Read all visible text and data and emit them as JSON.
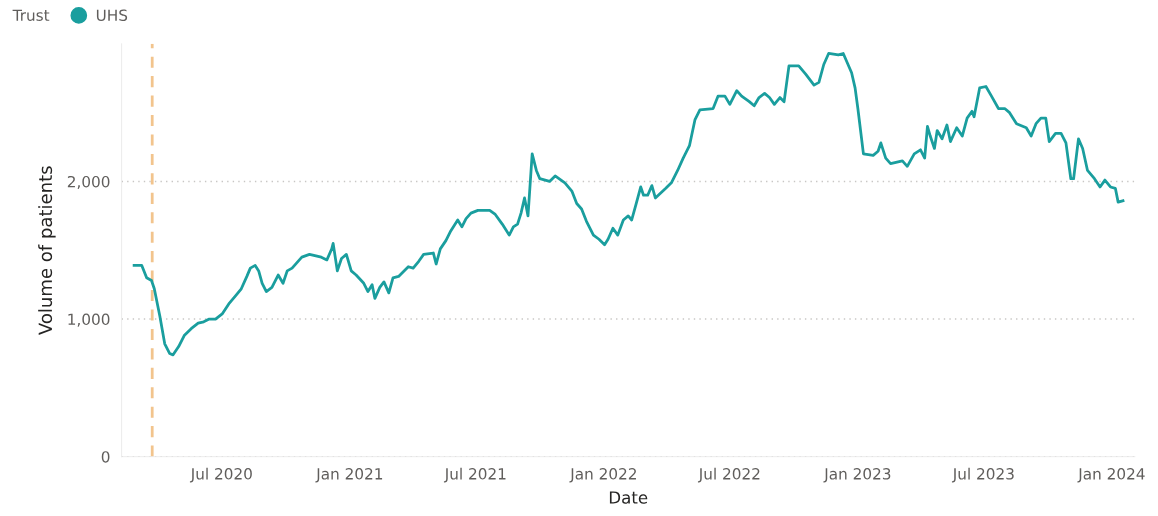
{
  "chart_data": {
    "type": "line",
    "xlabel": "Date",
    "ylabel": "Volume of patients",
    "legend_title": "Trust",
    "legend": "top left",
    "grid": "y",
    "marker": "none",
    "line_style": "solid",
    "xlim": [
      "2020-02-08",
      "2024-02-03"
    ],
    "ylim": [
      0,
      3000
    ],
    "yticks": [
      0,
      {
        "value": 1000,
        "label": "1,000"
      },
      {
        "value": 2000,
        "label": "2,000"
      }
    ],
    "xticks": [
      {
        "value": "2020-07-01",
        "label": "Jul 2020"
      },
      {
        "value": "2021-01-01",
        "label": "Jan 2021"
      },
      {
        "value": "2021-07-01",
        "label": "Jul 2021"
      },
      {
        "value": "2022-01-01",
        "label": "Jan 2022"
      },
      {
        "value": "2022-07-01",
        "label": "Jul 2022"
      },
      {
        "value": "2023-01-01",
        "label": "Jan 2023"
      },
      {
        "value": "2023-07-01",
        "label": "Jul 2023"
      },
      {
        "value": "2024-01-01",
        "label": "Jan 2024"
      }
    ],
    "ref_lines": [
      {
        "axis": "x",
        "value": "2020-03-23",
        "label": null,
        "color": "#f2c48d",
        "line_style": "dashed"
      }
    ],
    "x": [
      "2020-02-26",
      "2020-03-08",
      "2020-03-15",
      "2020-03-22",
      "2020-03-26",
      "2020-04-03",
      "2020-04-10",
      "2020-04-17",
      "2020-04-22",
      "2020-04-30",
      "2020-05-08",
      "2020-05-18",
      "2020-05-28",
      "2020-06-05",
      "2020-06-13",
      "2020-06-22",
      "2020-07-02",
      "2020-07-11",
      "2020-07-21",
      "2020-07-29",
      "2020-08-06",
      "2020-08-11",
      "2020-08-18",
      "2020-08-23",
      "2020-08-28",
      "2020-09-03",
      "2020-09-11",
      "2020-09-20",
      "2020-09-27",
      "2020-10-03",
      "2020-10-10",
      "2020-10-17",
      "2020-10-24",
      "2020-11-04",
      "2020-11-21",
      "2020-11-29",
      "2020-12-06",
      "2020-12-08",
      "2020-12-14",
      "2020-12-20",
      "2020-12-27",
      "2021-01-03",
      "2021-01-10",
      "2021-01-21",
      "2021-01-27",
      "2021-02-02",
      "2021-02-06",
      "2021-02-13",
      "2021-02-19",
      "2021-02-26",
      "2021-03-04",
      "2021-03-12",
      "2021-03-26",
      "2021-04-02",
      "2021-04-10",
      "2021-04-17",
      "2021-05-01",
      "2021-05-05",
      "2021-05-11",
      "2021-05-19",
      "2021-05-26",
      "2021-06-05",
      "2021-06-11",
      "2021-06-17",
      "2021-06-24",
      "2021-07-04",
      "2021-07-21",
      "2021-07-29",
      "2021-08-08",
      "2021-08-18",
      "2021-08-24",
      "2021-08-30",
      "2021-09-04",
      "2021-09-09",
      "2021-09-14",
      "2021-09-20",
      "2021-09-26",
      "2021-10-01",
      "2021-10-15",
      "2021-10-23",
      "2021-11-06",
      "2021-11-16",
      "2021-11-23",
      "2021-11-30",
      "2021-12-07",
      "2021-12-17",
      "2021-12-25",
      "2022-01-02",
      "2022-01-07",
      "2022-01-14",
      "2022-01-21",
      "2022-01-29",
      "2022-02-05",
      "2022-02-10",
      "2022-02-16",
      "2022-02-23",
      "2022-02-27",
      "2022-03-05",
      "2022-03-11",
      "2022-03-16",
      "2022-03-31",
      "2022-04-08",
      "2022-04-17",
      "2022-04-25",
      "2022-05-04",
      "2022-05-12",
      "2022-05-19",
      "2022-06-07",
      "2022-06-14",
      "2022-06-24",
      "2022-07-01",
      "2022-07-11",
      "2022-07-18",
      "2022-07-29",
      "2022-08-05",
      "2022-08-12",
      "2022-08-20",
      "2022-08-27",
      "2022-09-03",
      "2022-09-11",
      "2022-09-17",
      "2022-09-24",
      "2022-10-08",
      "2022-10-18",
      "2022-10-30",
      "2022-11-06",
      "2022-11-13",
      "2022-11-20",
      "2022-12-04",
      "2022-12-11",
      "2022-12-23",
      "2022-12-28",
      "2023-01-01",
      "2023-01-09",
      "2023-01-23",
      "2023-01-30",
      "2023-02-03",
      "2023-02-10",
      "2023-02-17",
      "2023-03-06",
      "2023-03-13",
      "2023-03-23",
      "2023-04-01",
      "2023-04-07",
      "2023-04-11",
      "2023-04-15",
      "2023-04-21",
      "2023-04-25",
      "2023-05-02",
      "2023-05-09",
      "2023-05-14",
      "2023-05-23",
      "2023-05-31",
      "2023-06-07",
      "2023-06-14",
      "2023-06-17",
      "2023-06-25",
      "2023-07-04",
      "2023-07-12",
      "2023-07-22",
      "2023-07-31",
      "2023-08-07",
      "2023-08-17",
      "2023-08-31",
      "2023-09-07",
      "2023-09-14",
      "2023-09-21",
      "2023-09-28",
      "2023-10-03",
      "2023-10-12",
      "2023-10-20",
      "2023-10-27",
      "2023-11-03",
      "2023-11-07",
      "2023-11-14",
      "2023-11-20",
      "2023-11-27",
      "2023-12-07",
      "2023-12-15",
      "2023-12-22",
      "2023-12-30",
      "2024-01-06",
      "2024-01-10",
      "2024-01-17"
    ],
    "series": [
      {
        "name": "UHS",
        "color": "#1a9e9e",
        "values": [
          1390,
          1390,
          1300,
          1280,
          1220,
          1020,
          820,
          750,
          740,
          800,
          880,
          930,
          970,
          980,
          1000,
          1000,
          1040,
          1110,
          1170,
          1220,
          1310,
          1370,
          1390,
          1350,
          1260,
          1200,
          1230,
          1320,
          1260,
          1350,
          1370,
          1410,
          1450,
          1470,
          1450,
          1430,
          1510,
          1550,
          1350,
          1440,
          1470,
          1350,
          1320,
          1260,
          1200,
          1250,
          1150,
          1230,
          1270,
          1190,
          1300,
          1310,
          1380,
          1370,
          1420,
          1470,
          1480,
          1400,
          1510,
          1570,
          1640,
          1720,
          1670,
          1730,
          1770,
          1790,
          1790,
          1760,
          1690,
          1610,
          1670,
          1690,
          1770,
          1880,
          1750,
          2200,
          2080,
          2020,
          2000,
          2040,
          1990,
          1930,
          1840,
          1800,
          1710,
          1610,
          1580,
          1540,
          1580,
          1660,
          1610,
          1720,
          1750,
          1720,
          1830,
          1960,
          1900,
          1900,
          1970,
          1880,
          1950,
          1990,
          2080,
          2170,
          2260,
          2450,
          2520,
          2530,
          2620,
          2620,
          2560,
          2660,
          2620,
          2580,
          2550,
          2610,
          2640,
          2610,
          2560,
          2610,
          2580,
          2840,
          2840,
          2780,
          2700,
          2720,
          2850,
          2930,
          2920,
          2930,
          2790,
          2680,
          2530,
          2200,
          2190,
          2220,
          2280,
          2170,
          2130,
          2150,
          2110,
          2200,
          2230,
          2170,
          2400,
          2330,
          2240,
          2370,
          2310,
          2410,
          2290,
          2390,
          2330,
          2460,
          2510,
          2470,
          2680,
          2690,
          2620,
          2530,
          2530,
          2500,
          2420,
          2390,
          2330,
          2420,
          2460,
          2460,
          2290,
          2350,
          2350,
          2280,
          2020,
          2020,
          2310,
          2240,
          2080,
          2020,
          1960,
          2010,
          1960,
          1950,
          1850,
          1860
        ]
      }
    ]
  }
}
